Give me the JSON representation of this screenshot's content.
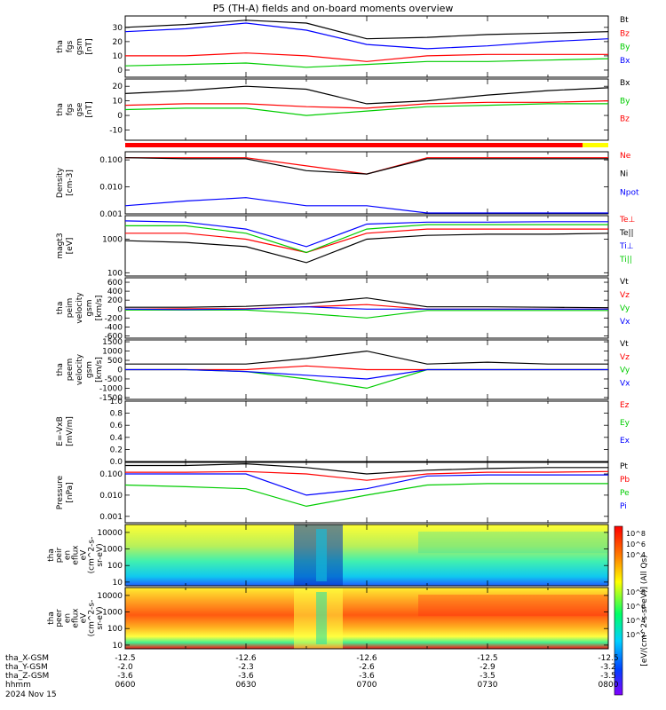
{
  "title": "P5 (TH-A) fields and on-board moments overview",
  "panels": [
    {
      "id": "fgs",
      "ylabel": [
        "tha",
        "fgs",
        "gsm",
        "[nT]"
      ],
      "ticks": [
        "30",
        "20",
        "10",
        "0"
      ],
      "scale": "linear",
      "ylim": [
        -5,
        38
      ],
      "legend": [
        {
          "label": "Bt",
          "color": "#000000"
        },
        {
          "label": "Bz",
          "color": "#ff0000"
        },
        {
          "label": "By",
          "color": "#00cc00"
        },
        {
          "label": "Bx",
          "color": "#0000ff"
        }
      ]
    },
    {
      "id": "fgs2",
      "ylabel": [
        "tha",
        "fgs",
        "gse",
        "[nT]"
      ],
      "ticks": [
        "20",
        "10",
        "0",
        "-10"
      ],
      "scale": "linear",
      "ylim": [
        -17,
        25
      ],
      "legend": [
        {
          "label": "Bx",
          "color": "#000000"
        },
        {
          "label": "By",
          "color": "#00cc00"
        },
        {
          "label": "Bz",
          "color": "#ff0000"
        }
      ]
    },
    {
      "id": "density",
      "ylabel": [
        "Density",
        "[cm-3]"
      ],
      "ticks": [
        "0.100",
        "0.010",
        "0.001"
      ],
      "scale": "log",
      "ylim": [
        0.001,
        0.2
      ],
      "legend": [
        {
          "label": "Ne",
          "color": "#ff0000"
        },
        {
          "label": "Ni",
          "color": "#000000"
        },
        {
          "label": "Npot",
          "color": "#0000ff"
        }
      ]
    },
    {
      "id": "temperature",
      "ylabel": [
        "magt3",
        "[eV]"
      ],
      "ticks": [
        "1000",
        "100"
      ],
      "scale": "log",
      "ylim": [
        80,
        5000
      ],
      "legend": [
        {
          "label": "Te⊥",
          "color": "#ff0000"
        },
        {
          "label": "Te||",
          "color": "#000000"
        },
        {
          "label": "Ti⊥",
          "color": "#0000ff"
        },
        {
          "label": "Ti||",
          "color": "#00cc00"
        }
      ]
    },
    {
      "id": "peim_velocity",
      "ylabel": [
        "tha",
        "peim",
        "velocity",
        "gsm",
        "[km/s]"
      ],
      "ticks": [
        "600",
        "400",
        "200",
        "0",
        "-200",
        "-400",
        "-600"
      ],
      "scale": "linear",
      "ylim": [
        -650,
        700
      ],
      "legend": [
        {
          "label": "Vt",
          "color": "#000000"
        },
        {
          "label": "Vz",
          "color": "#ff0000"
        },
        {
          "label": "Vy",
          "color": "#00cc00"
        },
        {
          "label": "Vx",
          "color": "#0000ff"
        }
      ]
    },
    {
      "id": "peem_velocity",
      "ylabel": [
        "tha",
        "peem",
        "velocity",
        "gsm",
        "[km/s]"
      ],
      "ticks": [
        "1500",
        "1000",
        "500",
        "0",
        "-500",
        "-1000",
        "-1500"
      ],
      "scale": "linear",
      "ylim": [
        -1600,
        1600
      ],
      "legend": [
        {
          "label": "Vt",
          "color": "#000000"
        },
        {
          "label": "Vz",
          "color": "#ff0000"
        },
        {
          "label": "Vy",
          "color": "#00cc00"
        },
        {
          "label": "Vx",
          "color": "#0000ff"
        }
      ]
    },
    {
      "id": "efield",
      "ylabel": [
        "E=-VxB",
        "[mV/m]"
      ],
      "ticks": [
        "1.0",
        "0.8",
        "0.6",
        "0.4",
        "0.2",
        "0.0"
      ],
      "scale": "linear",
      "ylim": [
        0,
        1
      ],
      "legend": [
        {
          "label": "Ez",
          "color": "#ff0000"
        },
        {
          "label": "Ey",
          "color": "#00cc00"
        },
        {
          "label": "Ex",
          "color": "#0000ff"
        }
      ]
    },
    {
      "id": "pressure",
      "ylabel": [
        "Pressure",
        "[nPa]"
      ],
      "ticks": [
        "0.100",
        "0.010",
        "0.001"
      ],
      "scale": "log",
      "ylim": [
        0.0005,
        0.35
      ],
      "legend": [
        {
          "label": "Pt",
          "color": "#000000"
        },
        {
          "label": "Pb",
          "color": "#ff0000"
        },
        {
          "label": "Pe",
          "color": "#00cc00"
        },
        {
          "label": "Pi",
          "color": "#0000ff"
        }
      ]
    },
    {
      "id": "peir_eflux",
      "ylabel": [
        "tha",
        "peir",
        "en",
        "eflux",
        "eV",
        "(cm^2-s-",
        "sr-eV)"
      ],
      "ticks": [
        "10000",
        "1000",
        "100",
        "10"
      ],
      "scale": "log",
      "ylim": [
        6,
        30000
      ],
      "spectrogram": true
    },
    {
      "id": "peer_eflux",
      "ylabel": [
        "tha",
        "peer",
        "en",
        "eflux",
        "eV",
        "(cm^2-s-",
        "sr-eV)"
      ],
      "ticks": [
        "10000",
        "1000",
        "100",
        "10"
      ],
      "scale": "log",
      "ylim": [
        6,
        30000
      ],
      "spectrogram": true
    }
  ],
  "colorbar": {
    "label": "[eV/(cm^2-s-sr-eV)] (All Qs)",
    "ticks_upper": [
      "10^8",
      "10^6",
      "10^4"
    ],
    "ticks_lower": [
      "10^8",
      "10^6",
      "10^4",
      "10^2"
    ]
  },
  "footer": {
    "rows": [
      {
        "label": "tha_X-GSM",
        "values": [
          "-12.5",
          "-12.6",
          "-12.6",
          "-12.5",
          "-12.5"
        ]
      },
      {
        "label": "tha_Y-GSM",
        "values": [
          "-2.0",
          "-2.3",
          "-2.6",
          "-2.9",
          "-3.2"
        ]
      },
      {
        "label": "tha_Z-GSM",
        "values": [
          "-3.6",
          "-3.6",
          "-3.6",
          "-3.5",
          "-3.5"
        ]
      },
      {
        "label": "hhmm",
        "values": [
          "0600",
          "0630",
          "0700",
          "0730",
          "0800"
        ]
      }
    ],
    "date": "2024 Nov 15"
  },
  "chart_data": {
    "type": "line",
    "title": "P5 (TH-A) fields and on-board moments overview",
    "x": [
      "0600",
      "0615",
      "0630",
      "0645",
      "0700",
      "0715",
      "0730",
      "0745",
      "0800"
    ],
    "x_ticks": [
      "0600",
      "0630",
      "0700",
      "0730",
      "0800"
    ],
    "fgs": {
      "Bt": [
        30,
        32,
        35,
        33,
        22,
        23,
        25,
        26,
        27
      ],
      "Bz": [
        10,
        10,
        12,
        10,
        6,
        10,
        11,
        11,
        11
      ],
      "By": [
        3,
        4,
        5,
        2,
        4,
        6,
        6,
        7,
        8
      ],
      "Bx": [
        27,
        29,
        33,
        28,
        18,
        15,
        17,
        20,
        22
      ]
    },
    "fgs2": {
      "Bx": [
        15,
        17,
        20,
        18,
        8,
        10,
        14,
        17,
        19
      ],
      "By": [
        4,
        5,
        5,
        0,
        3,
        6,
        7,
        8,
        8
      ],
      "Bz": [
        7,
        8,
        8,
        6,
        5,
        8,
        9,
        9,
        10
      ]
    },
    "density": {
      "Ne": [
        0.12,
        0.12,
        0.12,
        0.06,
        0.03,
        0.12,
        0.12,
        0.12,
        0.12
      ],
      "Ni": [
        0.12,
        0.11,
        0.11,
        0.04,
        0.03,
        0.11,
        0.11,
        0.11,
        0.11
      ],
      "Npot": [
        0.002,
        0.003,
        0.004,
        0.002,
        0.002,
        0.001,
        0.001,
        0.001,
        0.001
      ]
    },
    "temperature": {
      "Te_perp": [
        1500,
        1500,
        1000,
        400,
        1500,
        2000,
        2000,
        2000,
        2000
      ],
      "Te_par": [
        900,
        800,
        600,
        200,
        1000,
        1300,
        1400,
        1400,
        1500
      ],
      "Ti_perp": [
        3500,
        3200,
        2000,
        600,
        2800,
        3200,
        3200,
        3300,
        3300
      ],
      "Ti_par": [
        2500,
        2500,
        1500,
        400,
        2000,
        2700,
        2700,
        2700,
        2700
      ]
    },
    "peim_velocity": {
      "Vt": [
        40,
        40,
        60,
        120,
        250,
        50,
        50,
        40,
        30
      ],
      "Vz": [
        0,
        10,
        10,
        50,
        100,
        0,
        0,
        0,
        0
      ],
      "Vy": [
        -20,
        -20,
        -20,
        -100,
        -200,
        -30,
        -30,
        -30,
        -30
      ],
      "Vx": [
        0,
        -10,
        0,
        50,
        0,
        0,
        0,
        0,
        0
      ]
    },
    "peem_velocity": {
      "Vt": [
        300,
        300,
        300,
        600,
        1000,
        300,
        400,
        300,
        300
      ],
      "Vz": [
        0,
        0,
        0,
        200,
        0,
        0,
        0,
        0,
        0
      ],
      "Vy": [
        0,
        0,
        -100,
        -500,
        -1000,
        0,
        0,
        0,
        0
      ],
      "Vx": [
        0,
        0,
        -100,
        -300,
        -500,
        0,
        0,
        0,
        0
      ]
    },
    "pressure": {
      "Pt": [
        0.25,
        0.25,
        0.3,
        0.2,
        0.1,
        0.15,
        0.18,
        0.2,
        0.2
      ],
      "Pb": [
        0.12,
        0.12,
        0.13,
        0.1,
        0.05,
        0.1,
        0.12,
        0.12,
        0.13
      ],
      "Pe": [
        0.03,
        0.025,
        0.02,
        0.003,
        0.01,
        0.03,
        0.035,
        0.035,
        0.035
      ],
      "Pi": [
        0.1,
        0.1,
        0.1,
        0.01,
        0.02,
        0.08,
        0.09,
        0.09,
        0.09
      ]
    }
  }
}
